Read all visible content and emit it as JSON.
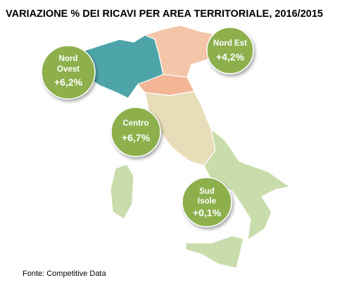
{
  "title": "VARIAZIONE % DEI RICAVI PER AREA TERRITORIALE, 2016/2015",
  "regions": [
    {
      "name": [
        "Nord",
        "Ovest"
      ],
      "label": "+6,2%"
    },
    {
      "name": [
        "Nord Est"
      ],
      "label": "+4,2%"
    },
    {
      "name": [
        "Centro"
      ],
      "label": "+6,7%"
    },
    {
      "name": [
        "Sud",
        "Isole"
      ],
      "label": "+0,1%"
    }
  ],
  "source": "Fonte: Competitive Data"
}
